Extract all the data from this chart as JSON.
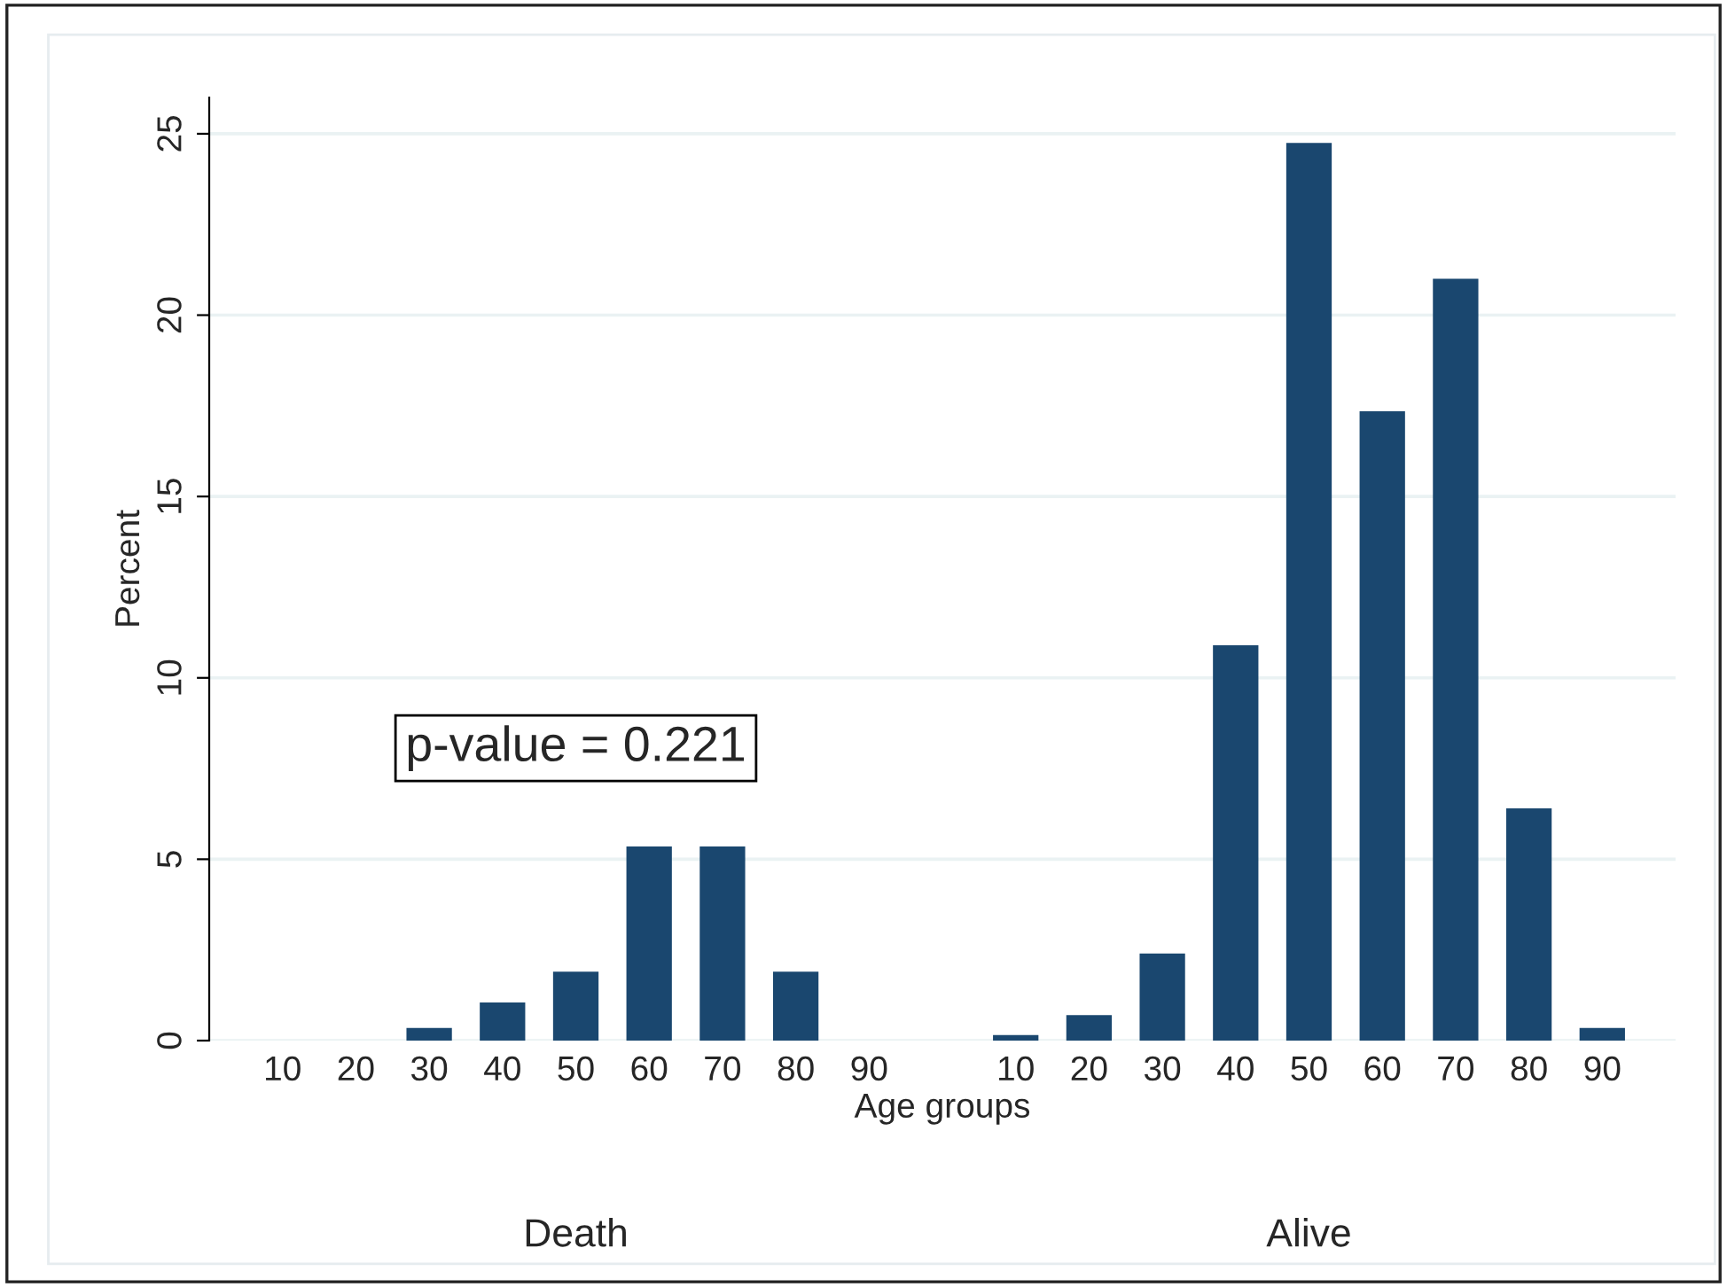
{
  "chart_data": {
    "type": "bar",
    "xlabel": "Age groups",
    "ylabel": "Percent",
    "categories": [
      "10",
      "20",
      "30",
      "40",
      "50",
      "60",
      "70",
      "80",
      "90",
      null,
      "10",
      "20",
      "30",
      "40",
      "50",
      "60",
      "70",
      "80",
      "90"
    ],
    "values": [
      0,
      0,
      0.35,
      1.05,
      1.9,
      5.35,
      5.35,
      1.9,
      0,
      null,
      0.15,
      0.7,
      2.4,
      10.9,
      24.75,
      17.35,
      21,
      6.4,
      0.35
    ],
    "color": "#1a476f",
    "ylim": [
      0,
      26
    ],
    "yticks": [
      0,
      5,
      10,
      15,
      20,
      25
    ],
    "grid": "y",
    "annotations": [
      "p-value = 0.221",
      "Death",
      "Alive"
    ]
  }
}
